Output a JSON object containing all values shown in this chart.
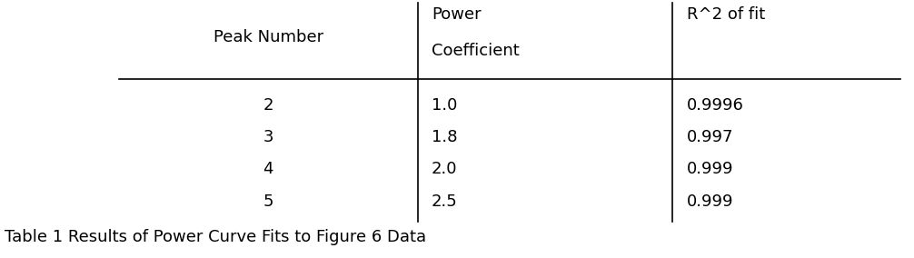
{
  "col_headers": [
    "Peak Number",
    "Power\nCoefficient",
    "R^2 of fit"
  ],
  "rows": [
    [
      "2",
      "1.0",
      "0.9996"
    ],
    [
      "3",
      "1.8",
      "0.997"
    ],
    [
      "4",
      "2.0",
      "0.999"
    ],
    [
      "5",
      "2.5",
      "0.999"
    ]
  ],
  "caption": "Table 1 Results of Power Curve Fits to Figure 6 Data",
  "background_color": "#ffffff",
  "text_color": "#000000",
  "fontsize": 13.0,
  "caption_fontsize": 13.0
}
